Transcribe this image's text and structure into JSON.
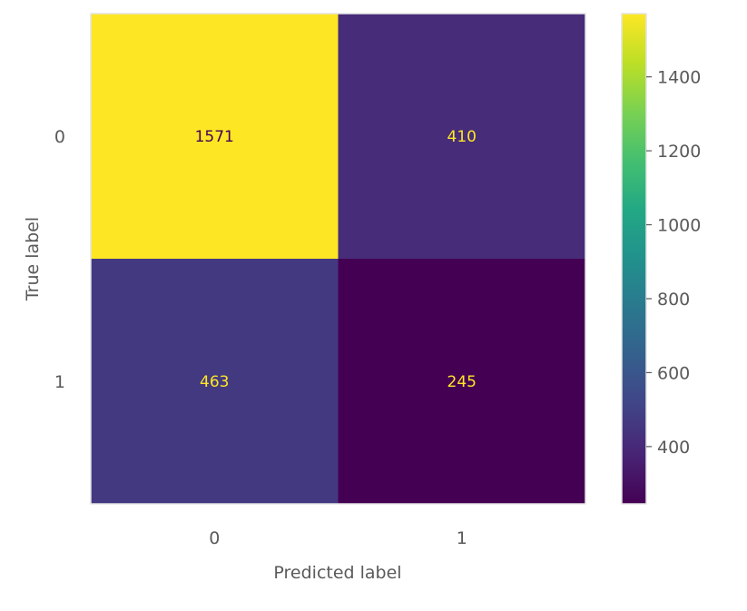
{
  "chart_data": {
    "type": "heatmap",
    "title": "",
    "xlabel": "Predicted label",
    "ylabel": "True label",
    "x_categories": [
      "0",
      "1"
    ],
    "y_categories": [
      "0",
      "1"
    ],
    "matrix": [
      [
        1571,
        410
      ],
      [
        463,
        245
      ]
    ],
    "value_labels": [
      [
        "1571",
        "410"
      ],
      [
        "463",
        "245"
      ]
    ],
    "colormap": "viridis",
    "colorbar": {
      "range": [
        245,
        1571
      ],
      "ticks": [
        400,
        600,
        800,
        1000,
        1200,
        1400
      ],
      "tick_labels": [
        "400",
        "600",
        "800",
        "1000",
        "1200",
        "1400"
      ]
    },
    "text_colors": {
      "on_dark": "#fde725",
      "on_bright": "#440154"
    },
    "grid": false
  }
}
